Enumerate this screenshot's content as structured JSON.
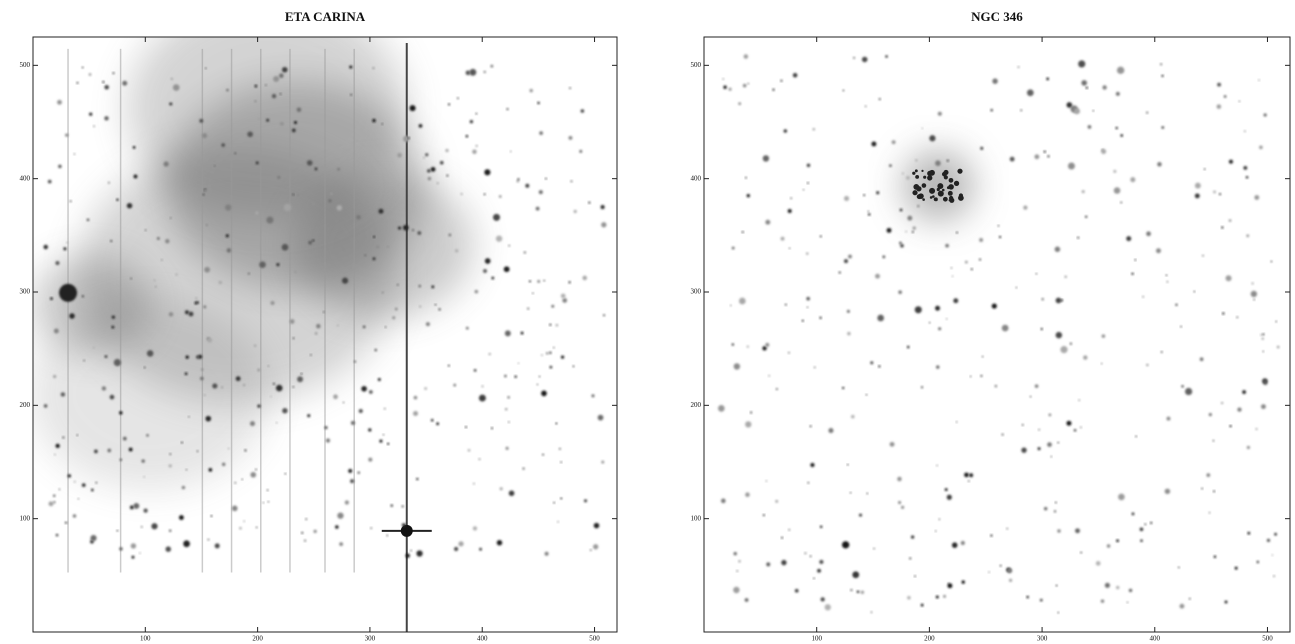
{
  "chart_data": [
    {
      "type": "image",
      "title": "ETA CARINA",
      "xlim": [
        0,
        520
      ],
      "ylim": [
        0,
        525
      ],
      "xticks": [
        100,
        200,
        300,
        400,
        500
      ],
      "yticks": [
        100,
        200,
        300,
        400,
        500
      ]
    },
    {
      "type": "image",
      "title": "NGC 346",
      "xlim": [
        0,
        520
      ],
      "ylim": [
        0,
        525
      ],
      "xticks": [
        100,
        200,
        300,
        400,
        500
      ],
      "yticks": [
        100,
        200,
        300,
        400,
        500
      ]
    }
  ]
}
